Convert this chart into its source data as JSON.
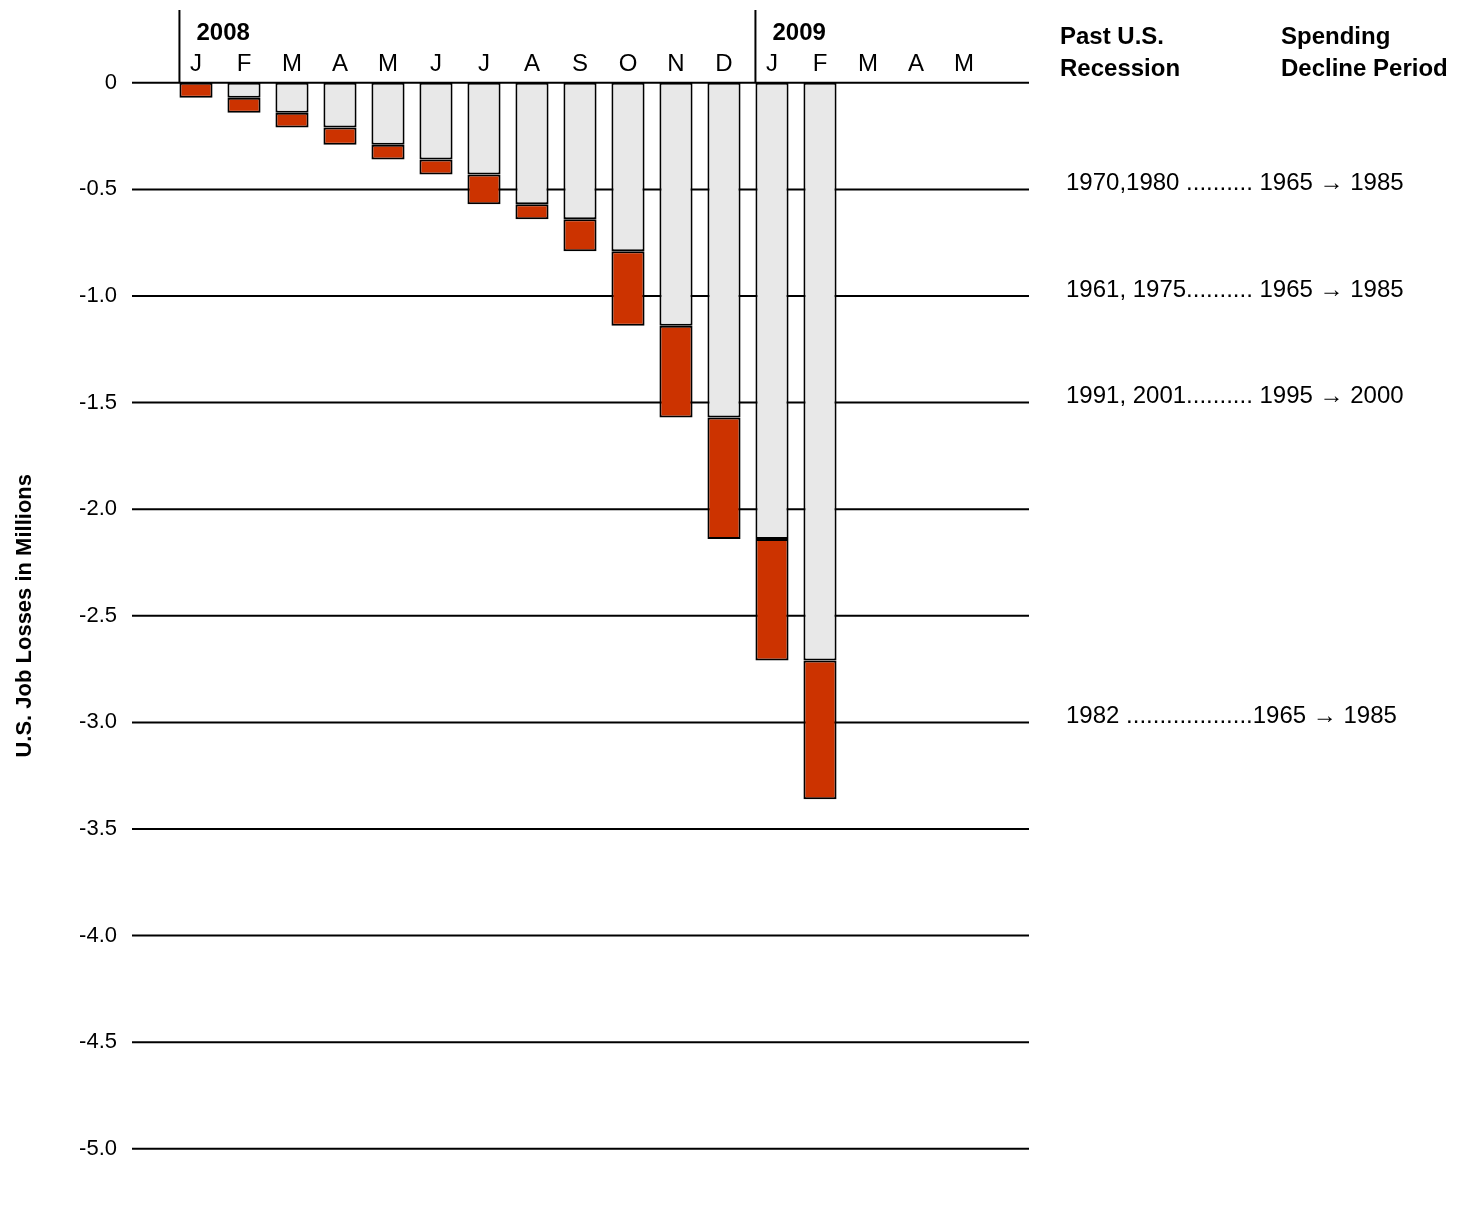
{
  "chart_data": {
    "type": "bar",
    "stacked": true,
    "categories": [
      "J",
      "F",
      "M",
      "A",
      "M",
      "J",
      "J",
      "A",
      "S",
      "O",
      "N",
      "D",
      "J",
      "F",
      "M",
      "A",
      "M"
    ],
    "series": [
      {
        "color": "#e8e8e8",
        "values": [
          0,
          -0.07,
          -0.14,
          -0.21,
          -0.29,
          -0.36,
          -0.43,
          -0.57,
          -0.64,
          -0.79,
          -1.14,
          -1.57,
          -2.14,
          -2.71,
          null,
          null,
          null
        ]
      },
      {
        "color": "#cc3300",
        "values": [
          -0.07,
          -0.07,
          -0.07,
          -0.08,
          -0.07,
          -0.07,
          -0.14,
          -0.07,
          -0.15,
          -0.35,
          -0.43,
          -0.57,
          -0.57,
          -0.65,
          null,
          null,
          null
        ]
      }
    ],
    "ylabel": "U.S. Job Losses in Millions",
    "ylim": [
      -5,
      0
    ],
    "yticks": [
      0,
      -0.5,
      {
        "value": -1,
        "label": "-1.0"
      },
      -1.5,
      {
        "value": -2,
        "label": "-2.0"
      },
      -2.5,
      {
        "value": -3,
        "label": "-3.0"
      },
      -3.5,
      {
        "value": -4,
        "label": "-4.0"
      },
      -4.5,
      {
        "value": -5,
        "label": "-5.0"
      }
    ],
    "grid": "y",
    "legend": false,
    "annotations": [
      "2008",
      "2009",
      "Past U.S. Recession",
      "Spending Decline Period",
      "1970,1980 .......... 1965 → 1985",
      "1961, 1975.......... 1965 → 1985",
      "1991, 2001.......... 1995 → 2000",
      "1982 ...................1965 → 1985"
    ]
  }
}
